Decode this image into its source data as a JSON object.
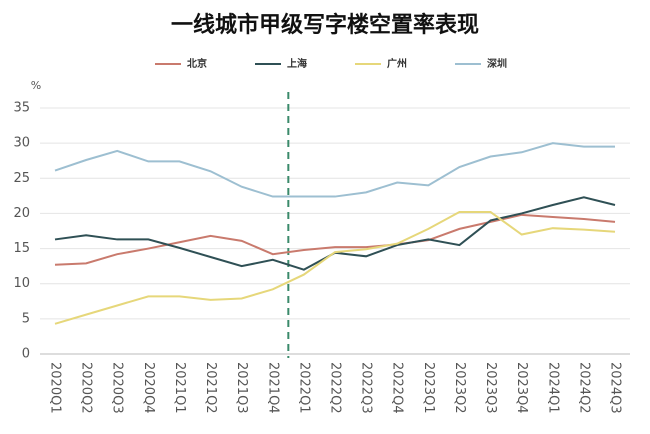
{
  "chart_data": {
    "type": "line",
    "title": "一线城市甲级写字楼空置率表现",
    "y_label": "%",
    "categories": [
      "2020Q1",
      "2020Q2",
      "2020Q3",
      "2020Q4",
      "2021Q1",
      "2021Q2",
      "2021Q3",
      "2021Q4",
      "2022Q1",
      "2022Q2",
      "2022Q3",
      "2022Q4",
      "2023Q1",
      "2023Q2",
      "2023Q3",
      "2023Q4",
      "2024Q1",
      "2024Q2",
      "2024Q3"
    ],
    "series": [
      {
        "name": "北京",
        "color": "#c97a6d",
        "values": [
          12.7,
          12.9,
          14.2,
          15.0,
          15.9,
          16.8,
          16.1,
          14.2,
          14.8,
          15.2,
          15.2,
          15.6,
          16.2,
          17.8,
          18.8,
          19.8,
          19.5,
          19.2,
          18.8
        ]
      },
      {
        "name": "上海",
        "color": "#2f5055",
        "values": [
          16.3,
          16.9,
          16.3,
          16.3,
          15.1,
          13.8,
          12.5,
          13.4,
          12.0,
          14.4,
          13.9,
          15.5,
          16.3,
          15.5,
          19.0,
          20.0,
          21.2,
          22.3,
          21.2
        ]
      },
      {
        "name": "广州",
        "color": "#e6d77a",
        "values": [
          4.3,
          5.6,
          6.9,
          8.2,
          8.2,
          7.7,
          7.9,
          9.2,
          11.3,
          14.5,
          14.9,
          15.7,
          17.8,
          20.2,
          20.2,
          17.0,
          17.9,
          17.7,
          17.4
        ]
      },
      {
        "name": "深圳",
        "color": "#9dbfd1",
        "values": [
          26.1,
          27.6,
          28.9,
          27.4,
          27.4,
          26.0,
          23.8,
          22.4,
          22.4,
          22.4,
          23.0,
          24.4,
          24.0,
          26.6,
          28.1,
          28.7,
          30.0,
          29.5,
          29.5
        ]
      }
    ],
    "ylim": [
      0,
      35
    ],
    "yticks": [
      0,
      5,
      10,
      15,
      20,
      25,
      30,
      35
    ],
    "grid": true
  }
}
